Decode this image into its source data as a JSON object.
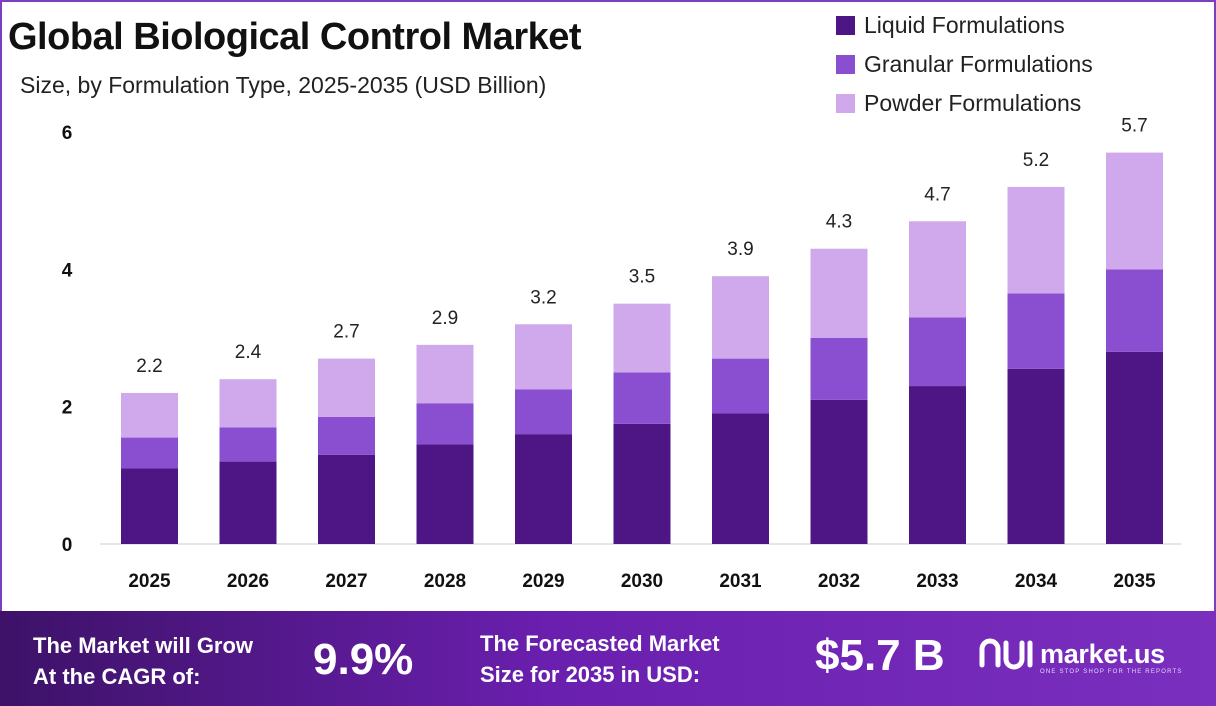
{
  "chart_data": {
    "type": "bar",
    "stacked": true,
    "title": "Global Biological Control Market",
    "subtitle": "Size, by Formulation Type, 2025-2035 (USD Billion)",
    "categories": [
      "2025",
      "2026",
      "2027",
      "2028",
      "2029",
      "2030",
      "2031",
      "2032",
      "2033",
      "2034",
      "2035"
    ],
    "series": [
      {
        "name": "Liquid Formulations",
        "color": "#4e1684",
        "values": [
          1.1,
          1.2,
          1.3,
          1.45,
          1.6,
          1.75,
          1.9,
          2.1,
          2.3,
          2.55,
          2.8
        ]
      },
      {
        "name": "Granular Formulations",
        "color": "#8a4fd0",
        "values": [
          0.45,
          0.5,
          0.55,
          0.6,
          0.65,
          0.75,
          0.8,
          0.9,
          1.0,
          1.1,
          1.2
        ]
      },
      {
        "name": "Powder Formulations",
        "color": "#cfa9ec",
        "values": [
          0.65,
          0.7,
          0.85,
          0.85,
          0.95,
          1.0,
          1.2,
          1.3,
          1.4,
          1.55,
          1.7
        ]
      }
    ],
    "totals": [
      "2.2",
      "2.4",
      "2.7",
      "2.9",
      "3.2",
      "3.5",
      "3.9",
      "4.3",
      "4.7",
      "5.2",
      "5.7"
    ],
    "yticks": [
      "0",
      "2",
      "4",
      "6"
    ],
    "ylim": [
      0,
      6
    ],
    "legend_position": "top-right",
    "grid": false
  },
  "footer": {
    "cagr_label_line1": "The Market will Grow",
    "cagr_label_line2": "At the CAGR of:",
    "cagr_value": "9.9%",
    "forecast_label_line1": "The Forecasted Market",
    "forecast_label_line2": "Size for 2035 in USD:",
    "forecast_value": "$5.7 B",
    "brand_name": "market.us",
    "brand_tagline": "ONE STOP SHOP FOR THE REPORTS"
  }
}
